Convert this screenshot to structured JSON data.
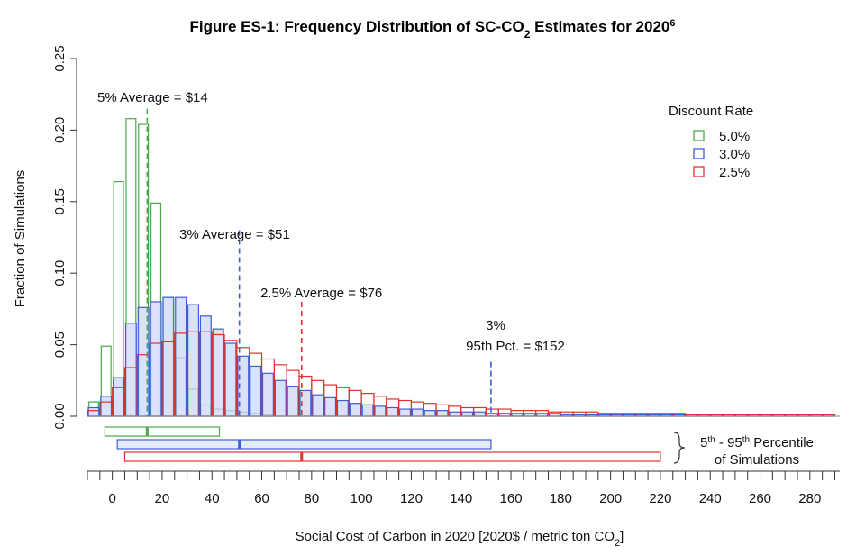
{
  "chart_data": {
    "type": "bar",
    "title": "Figure ES-1: Frequency Distribution of SC-CO",
    "title_sub": "2",
    "title_after": " Estimates for 2020",
    "title_sup": "6",
    "xlabel": "Social Cost of Carbon in 2020 [2020$ / metric ton CO",
    "xlabel_sub": "2",
    "xlabel_after": "]",
    "ylabel": "Fraction of Simulations",
    "xlim": [
      -10,
      292
    ],
    "ylim": [
      0,
      0.25
    ],
    "x_ticks": [
      0,
      20,
      40,
      60,
      80,
      100,
      120,
      140,
      160,
      180,
      200,
      220,
      240,
      260,
      280
    ],
    "y_ticks": [
      "0.00",
      "0.05",
      "0.10",
      "0.15",
      "0.20",
      "0.25"
    ],
    "bin_width": 5,
    "legend": {
      "title": "Discount Rate",
      "position": "top-right",
      "entries": [
        {
          "label": "5.0%",
          "color": "#4aa84a"
        },
        {
          "label": "3.0%",
          "color": "#3b5fd4"
        },
        {
          "label": "2.5%",
          "color": "#e03030"
        }
      ]
    },
    "series": [
      {
        "name": "5.0%",
        "color": "#4aa84a",
        "bin_starts": [
          -10,
          -5,
          0,
          5,
          10,
          15,
          20,
          25,
          30,
          35,
          40,
          45,
          50,
          55,
          60
        ],
        "values": [
          0.01,
          0.049,
          0.164,
          0.208,
          0.204,
          0.149,
          0.083,
          0.041,
          0.019,
          0.008,
          0.005,
          0.004,
          0.003,
          0.002,
          0.001
        ]
      },
      {
        "name": "3.0%",
        "color": "#3b5fd4",
        "bin_starts": [
          -10,
          -5,
          0,
          5,
          10,
          15,
          20,
          25,
          30,
          35,
          40,
          45,
          50,
          55,
          60,
          65,
          70,
          75,
          80,
          85,
          90,
          95,
          100,
          105,
          110,
          115,
          120,
          125,
          130,
          135,
          140,
          145,
          150,
          155,
          160,
          165,
          170,
          175,
          180,
          185,
          190,
          195,
          200,
          205,
          210,
          215,
          220,
          225,
          230,
          235,
          240,
          245,
          250,
          255,
          260,
          265,
          270,
          275,
          280,
          285
        ],
        "values": [
          0.006,
          0.014,
          0.027,
          0.065,
          0.076,
          0.08,
          0.083,
          0.083,
          0.078,
          0.07,
          0.061,
          0.051,
          0.042,
          0.035,
          0.03,
          0.025,
          0.021,
          0.018,
          0.015,
          0.013,
          0.011,
          0.009,
          0.008,
          0.007,
          0.006,
          0.005,
          0.005,
          0.004,
          0.004,
          0.003,
          0.003,
          0.003,
          0.002,
          0.002,
          0.002,
          0.002,
          0.002,
          0.002,
          0.001,
          0.001,
          0.001,
          0.001,
          0.001,
          0.001,
          0.001,
          0.001,
          0.001,
          0.001,
          0.001,
          0.001,
          0.001,
          0.001,
          0.001,
          0.001,
          0.001,
          0.001,
          0.001,
          0.001,
          0.001,
          0.001
        ]
      },
      {
        "name": "2.5%",
        "color": "#e03030",
        "bin_starts": [
          -10,
          -5,
          0,
          5,
          10,
          15,
          20,
          25,
          30,
          35,
          40,
          45,
          50,
          55,
          60,
          65,
          70,
          75,
          80,
          85,
          90,
          95,
          100,
          105,
          110,
          115,
          120,
          125,
          130,
          135,
          140,
          145,
          150,
          155,
          160,
          165,
          170,
          175,
          180,
          185,
          190,
          195,
          200,
          205,
          210,
          215,
          220,
          225,
          230,
          235,
          240,
          245,
          250,
          255,
          260,
          265,
          270,
          275,
          280,
          285
        ],
        "values": [
          0.004,
          0.01,
          0.02,
          0.034,
          0.043,
          0.051,
          0.052,
          0.058,
          0.059,
          0.059,
          0.057,
          0.053,
          0.048,
          0.044,
          0.04,
          0.036,
          0.032,
          0.028,
          0.025,
          0.022,
          0.02,
          0.018,
          0.016,
          0.014,
          0.012,
          0.011,
          0.01,
          0.009,
          0.008,
          0.007,
          0.006,
          0.006,
          0.005,
          0.005,
          0.004,
          0.004,
          0.004,
          0.003,
          0.003,
          0.003,
          0.003,
          0.002,
          0.002,
          0.002,
          0.002,
          0.002,
          0.002,
          0.002,
          0.001,
          0.001,
          0.001,
          0.001,
          0.001,
          0.001,
          0.001,
          0.001,
          0.001,
          0.001,
          0.001,
          0.001
        ]
      }
    ],
    "averages": [
      {
        "series": "5.0%",
        "x": 14,
        "label": "5% Average = $14",
        "color": "#4aa84a"
      },
      {
        "series": "3.0%",
        "x": 51,
        "label": "3% Average = $51",
        "color": "#3b5fd4"
      },
      {
        "series": "2.5%",
        "x": 76,
        "label": "2.5% Average = $76",
        "color": "#e03030"
      }
    ],
    "pct95_annotation": {
      "x": 152,
      "line1": "3%",
      "line2": "95th Pct. = $152",
      "color": "#3b5fd4"
    },
    "percentile_bars": [
      {
        "series": "5.0%",
        "p5": -3,
        "mean": 14,
        "p95": 43,
        "color": "#4aa84a"
      },
      {
        "series": "3.0%",
        "p5": 2,
        "mean": 51,
        "p95": 152,
        "color": "#3b5fd4"
      },
      {
        "series": "2.5%",
        "p5": 5,
        "mean": 76,
        "p95": 220,
        "color": "#e03030"
      }
    ],
    "percentile_label_line1": "5",
    "percentile_label_sup1": "th",
    "percentile_label_mid": " - 95",
    "percentile_label_sup2": "th",
    "percentile_label_after": " Percentile",
    "percentile_label_line2": "of Simulations",
    "grid": false
  }
}
